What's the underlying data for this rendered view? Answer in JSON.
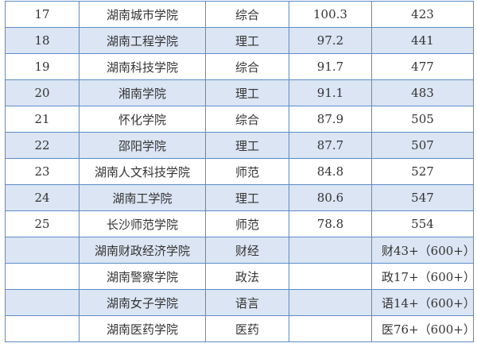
{
  "rows": [
    {
      "rank": "17",
      "name": "湖南城市学院",
      "type": "综合",
      "score": "100.3",
      "national": "423"
    },
    {
      "rank": "18",
      "name": "湖南工程学院",
      "type": "理工",
      "score": "97.2",
      "national": "441"
    },
    {
      "rank": "19",
      "name": "湖南科技学院",
      "type": "综合",
      "score": "91.7",
      "national": "477"
    },
    {
      "rank": "20",
      "name": "湘南学院",
      "type": "理工",
      "score": "91.1",
      "national": "483"
    },
    {
      "rank": "21",
      "name": "怀化学院",
      "type": "综合",
      "score": "87.9",
      "national": "505"
    },
    {
      "rank": "22",
      "name": "邵阳学院",
      "type": "理工",
      "score": "87.7",
      "national": "507"
    },
    {
      "rank": "23",
      "name": "湖南人文科技学院",
      "type": "师范",
      "score": "84.8",
      "national": "527"
    },
    {
      "rank": "24",
      "name": "湖南工学院",
      "type": "理工",
      "score": "80.6",
      "national": "547"
    },
    {
      "rank": "25",
      "name": "长沙师范学院",
      "type": "师范",
      "score": "78.8",
      "national": "554"
    },
    {
      "rank": "",
      "name": "湖南财政经济学院",
      "type": "财经",
      "score": "",
      "national": "财43+（600+）"
    },
    {
      "rank": "",
      "name": "湖南警察学院",
      "type": "政法",
      "score": "",
      "national": "政17+（600+）"
    },
    {
      "rank": "",
      "name": "湖南女子学院",
      "type": "语言",
      "score": "",
      "national": "语14+（600+）"
    },
    {
      "rank": "",
      "name": "湖南医药学院",
      "type": "医药",
      "score": "",
      "national": "医76+（600+）"
    }
  ],
  "colors": {
    "border": "#5b8cc8",
    "shade": "#dbe5f3"
  }
}
